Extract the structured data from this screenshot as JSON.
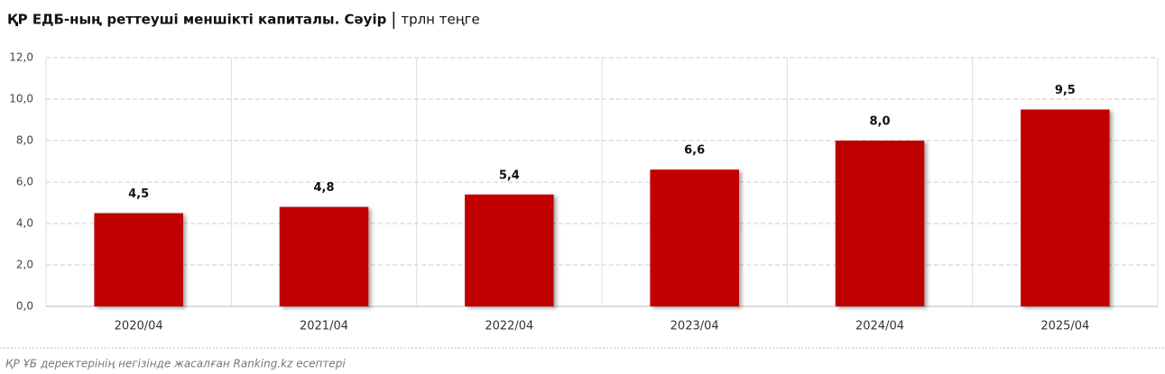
{
  "chart_data": {
    "type": "bar",
    "title": "ҚР ЕДБ-ның реттеуші меншікті капиталы. Сәуір",
    "subtitle": "трлн теңге",
    "categories": [
      "2020/04",
      "2021/04",
      "2022/04",
      "2023/04",
      "2024/04",
      "2025/04"
    ],
    "values": [
      4.5,
      4.8,
      5.4,
      6.6,
      8.0,
      9.5
    ],
    "value_labels": [
      "4,5",
      "4,8",
      "5,4",
      "6,6",
      "8,0",
      "9,5"
    ],
    "color": "#c00000",
    "ylim": [
      0,
      12
    ],
    "yticks": [
      {
        "value": 0,
        "label": "0,0"
      },
      {
        "value": 2,
        "label": "2,0"
      },
      {
        "value": 4,
        "label": "4,0"
      },
      {
        "value": 6,
        "label": "6,0"
      },
      {
        "value": 8,
        "label": "8,0"
      },
      {
        "value": 10,
        "label": "10,0"
      },
      {
        "value": 12,
        "label": "12,0"
      }
    ],
    "grid": true,
    "source": "ҚР ҰБ деректерінің негізінде жасалған Ranking.kz есептері"
  }
}
